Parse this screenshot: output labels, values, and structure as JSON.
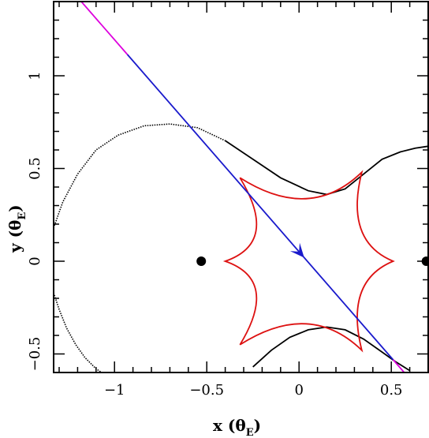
{
  "chart_data": {
    "type": "line",
    "title": "",
    "xlabel": "x (θ",
    "xlabel_sub": "E",
    "xlabel_close": ")",
    "ylabel": "y (θ",
    "ylabel_sub": "E",
    "ylabel_close": ")",
    "xlim": [
      -1.33,
      0.7
    ],
    "ylim": [
      -0.6,
      1.4
    ],
    "x_ticks": [
      {
        "value": -1,
        "label": "−1"
      },
      {
        "value": -0.5,
        "label": "−0.5"
      },
      {
        "value": 0,
        "label": "0"
      },
      {
        "value": 0.5,
        "label": "0.5"
      }
    ],
    "y_ticks": [
      {
        "value": -0.5,
        "label": "−0.5"
      },
      {
        "value": 0,
        "label": "0"
      },
      {
        "value": 0.5,
        "label": "0.5"
      },
      {
        "value": 1,
        "label": "1"
      }
    ],
    "grid": false,
    "lenses": [
      {
        "x": -0.53,
        "y": 0
      },
      {
        "x": 0.69,
        "y": 0
      }
    ],
    "caustic": {
      "color": "#dd1111",
      "cusps": [
        {
          "x": -0.32,
          "y": 0.45
        },
        {
          "x": 0.34,
          "y": 0.48
        },
        {
          "x": 0.51,
          "y": 0.0
        },
        {
          "x": 0.34,
          "y": -0.48
        },
        {
          "x": -0.32,
          "y": -0.45
        },
        {
          "x": -0.4,
          "y": 0.0
        }
      ]
    },
    "critical_curve_upper": {
      "color": "#000000",
      "points": [
        [
          -1.33,
          0.18
        ],
        [
          -1.28,
          0.32
        ],
        [
          -1.2,
          0.47
        ],
        [
          -1.1,
          0.6
        ],
        [
          -0.98,
          0.68
        ],
        [
          -0.84,
          0.73
        ],
        [
          -0.7,
          0.74
        ],
        [
          -0.55,
          0.72
        ],
        [
          -0.4,
          0.65
        ],
        [
          -0.25,
          0.55
        ],
        [
          -0.1,
          0.45
        ],
        [
          0.05,
          0.38
        ],
        [
          0.15,
          0.36
        ],
        [
          0.25,
          0.39
        ],
        [
          0.35,
          0.47
        ],
        [
          0.45,
          0.55
        ],
        [
          0.55,
          0.59
        ],
        [
          0.63,
          0.61
        ],
        [
          0.7,
          0.62
        ]
      ]
    },
    "critical_curve_lower": {
      "color": "#000000",
      "points": [
        [
          -0.25,
          -0.57
        ],
        [
          -0.15,
          -0.48
        ],
        [
          -0.05,
          -0.41
        ],
        [
          0.05,
          -0.37
        ],
        [
          0.15,
          -0.355
        ],
        [
          0.25,
          -0.37
        ],
        [
          0.35,
          -0.42
        ],
        [
          0.45,
          -0.49
        ],
        [
          0.52,
          -0.54
        ],
        [
          0.6,
          -0.59
        ]
      ]
    },
    "critical_curve_left": {
      "color": "#000000",
      "points": [
        [
          -1.33,
          -0.17
        ],
        [
          -1.3,
          -0.26
        ],
        [
          -1.26,
          -0.36
        ],
        [
          -1.21,
          -0.45
        ],
        [
          -1.16,
          -0.52
        ],
        [
          -1.1,
          -0.58
        ],
        [
          -1.07,
          -0.6
        ]
      ]
    },
    "trajectory": {
      "color": "#1a1acc",
      "end_color": "#dd00dd",
      "start": {
        "x": -1.18,
        "y": 1.4
      },
      "end": {
        "x": 0.57,
        "y": -0.6
      },
      "magenta_until_x": -0.93,
      "magenta_from_x": 0.51,
      "arrow_at": {
        "x": 0.0,
        "y": 0.06
      }
    }
  }
}
